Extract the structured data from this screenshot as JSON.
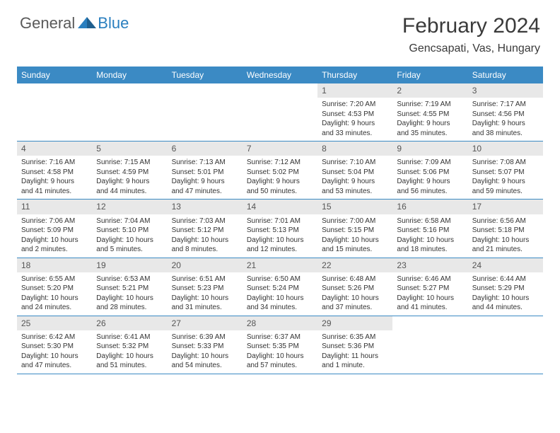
{
  "logo": {
    "part1": "General",
    "part2": "Blue"
  },
  "title": "February 2024",
  "location": "Gencsapati, Vas, Hungary",
  "colors": {
    "header_bg": "#3b8ac4",
    "header_text": "#ffffff",
    "daynum_bg": "#e8e8e8",
    "border": "#3b8ac4",
    "text": "#333333",
    "logo_gray": "#5a5a5a",
    "logo_blue": "#2a7fbf"
  },
  "day_names": [
    "Sunday",
    "Monday",
    "Tuesday",
    "Wednesday",
    "Thursday",
    "Friday",
    "Saturday"
  ],
  "weeks": [
    [
      {
        "n": "",
        "sr": "",
        "ss": "",
        "dl": ""
      },
      {
        "n": "",
        "sr": "",
        "ss": "",
        "dl": ""
      },
      {
        "n": "",
        "sr": "",
        "ss": "",
        "dl": ""
      },
      {
        "n": "",
        "sr": "",
        "ss": "",
        "dl": ""
      },
      {
        "n": "1",
        "sr": "Sunrise: 7:20 AM",
        "ss": "Sunset: 4:53 PM",
        "dl": "Daylight: 9 hours and 33 minutes."
      },
      {
        "n": "2",
        "sr": "Sunrise: 7:19 AM",
        "ss": "Sunset: 4:55 PM",
        "dl": "Daylight: 9 hours and 35 minutes."
      },
      {
        "n": "3",
        "sr": "Sunrise: 7:17 AM",
        "ss": "Sunset: 4:56 PM",
        "dl": "Daylight: 9 hours and 38 minutes."
      }
    ],
    [
      {
        "n": "4",
        "sr": "Sunrise: 7:16 AM",
        "ss": "Sunset: 4:58 PM",
        "dl": "Daylight: 9 hours and 41 minutes."
      },
      {
        "n": "5",
        "sr": "Sunrise: 7:15 AM",
        "ss": "Sunset: 4:59 PM",
        "dl": "Daylight: 9 hours and 44 minutes."
      },
      {
        "n": "6",
        "sr": "Sunrise: 7:13 AM",
        "ss": "Sunset: 5:01 PM",
        "dl": "Daylight: 9 hours and 47 minutes."
      },
      {
        "n": "7",
        "sr": "Sunrise: 7:12 AM",
        "ss": "Sunset: 5:02 PM",
        "dl": "Daylight: 9 hours and 50 minutes."
      },
      {
        "n": "8",
        "sr": "Sunrise: 7:10 AM",
        "ss": "Sunset: 5:04 PM",
        "dl": "Daylight: 9 hours and 53 minutes."
      },
      {
        "n": "9",
        "sr": "Sunrise: 7:09 AM",
        "ss": "Sunset: 5:06 PM",
        "dl": "Daylight: 9 hours and 56 minutes."
      },
      {
        "n": "10",
        "sr": "Sunrise: 7:08 AM",
        "ss": "Sunset: 5:07 PM",
        "dl": "Daylight: 9 hours and 59 minutes."
      }
    ],
    [
      {
        "n": "11",
        "sr": "Sunrise: 7:06 AM",
        "ss": "Sunset: 5:09 PM",
        "dl": "Daylight: 10 hours and 2 minutes."
      },
      {
        "n": "12",
        "sr": "Sunrise: 7:04 AM",
        "ss": "Sunset: 5:10 PM",
        "dl": "Daylight: 10 hours and 5 minutes."
      },
      {
        "n": "13",
        "sr": "Sunrise: 7:03 AM",
        "ss": "Sunset: 5:12 PM",
        "dl": "Daylight: 10 hours and 8 minutes."
      },
      {
        "n": "14",
        "sr": "Sunrise: 7:01 AM",
        "ss": "Sunset: 5:13 PM",
        "dl": "Daylight: 10 hours and 12 minutes."
      },
      {
        "n": "15",
        "sr": "Sunrise: 7:00 AM",
        "ss": "Sunset: 5:15 PM",
        "dl": "Daylight: 10 hours and 15 minutes."
      },
      {
        "n": "16",
        "sr": "Sunrise: 6:58 AM",
        "ss": "Sunset: 5:16 PM",
        "dl": "Daylight: 10 hours and 18 minutes."
      },
      {
        "n": "17",
        "sr": "Sunrise: 6:56 AM",
        "ss": "Sunset: 5:18 PM",
        "dl": "Daylight: 10 hours and 21 minutes."
      }
    ],
    [
      {
        "n": "18",
        "sr": "Sunrise: 6:55 AM",
        "ss": "Sunset: 5:20 PM",
        "dl": "Daylight: 10 hours and 24 minutes."
      },
      {
        "n": "19",
        "sr": "Sunrise: 6:53 AM",
        "ss": "Sunset: 5:21 PM",
        "dl": "Daylight: 10 hours and 28 minutes."
      },
      {
        "n": "20",
        "sr": "Sunrise: 6:51 AM",
        "ss": "Sunset: 5:23 PM",
        "dl": "Daylight: 10 hours and 31 minutes."
      },
      {
        "n": "21",
        "sr": "Sunrise: 6:50 AM",
        "ss": "Sunset: 5:24 PM",
        "dl": "Daylight: 10 hours and 34 minutes."
      },
      {
        "n": "22",
        "sr": "Sunrise: 6:48 AM",
        "ss": "Sunset: 5:26 PM",
        "dl": "Daylight: 10 hours and 37 minutes."
      },
      {
        "n": "23",
        "sr": "Sunrise: 6:46 AM",
        "ss": "Sunset: 5:27 PM",
        "dl": "Daylight: 10 hours and 41 minutes."
      },
      {
        "n": "24",
        "sr": "Sunrise: 6:44 AM",
        "ss": "Sunset: 5:29 PM",
        "dl": "Daylight: 10 hours and 44 minutes."
      }
    ],
    [
      {
        "n": "25",
        "sr": "Sunrise: 6:42 AM",
        "ss": "Sunset: 5:30 PM",
        "dl": "Daylight: 10 hours and 47 minutes."
      },
      {
        "n": "26",
        "sr": "Sunrise: 6:41 AM",
        "ss": "Sunset: 5:32 PM",
        "dl": "Daylight: 10 hours and 51 minutes."
      },
      {
        "n": "27",
        "sr": "Sunrise: 6:39 AM",
        "ss": "Sunset: 5:33 PM",
        "dl": "Daylight: 10 hours and 54 minutes."
      },
      {
        "n": "28",
        "sr": "Sunrise: 6:37 AM",
        "ss": "Sunset: 5:35 PM",
        "dl": "Daylight: 10 hours and 57 minutes."
      },
      {
        "n": "29",
        "sr": "Sunrise: 6:35 AM",
        "ss": "Sunset: 5:36 PM",
        "dl": "Daylight: 11 hours and 1 minute."
      },
      {
        "n": "",
        "sr": "",
        "ss": "",
        "dl": ""
      },
      {
        "n": "",
        "sr": "",
        "ss": "",
        "dl": ""
      }
    ]
  ]
}
